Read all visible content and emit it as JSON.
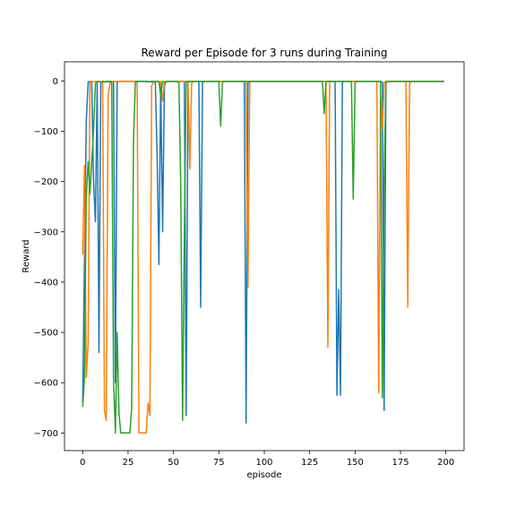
{
  "chart_data": {
    "type": "line",
    "title": "Reward per Episode for 3 runs during Training",
    "xlabel": "episode",
    "ylabel": "Reward",
    "xlim": [
      -10,
      210
    ],
    "ylim": [
      -735,
      38
    ],
    "xticks": [
      0,
      25,
      50,
      75,
      100,
      125,
      150,
      175,
      200
    ],
    "yticks": [
      0,
      -100,
      -200,
      -300,
      -400,
      -500,
      -600,
      -700
    ],
    "grid": false,
    "legend": "none",
    "series": [
      {
        "color": "#1f77b4",
        "points": [
          [
            0,
            -640
          ],
          [
            1,
            -350
          ],
          [
            2,
            -80
          ],
          [
            3,
            -2
          ],
          [
            4,
            -1
          ],
          [
            5,
            -3
          ],
          [
            6,
            -200
          ],
          [
            7,
            -280
          ],
          [
            8,
            -5
          ],
          [
            9,
            -540
          ],
          [
            10,
            -3
          ],
          [
            11,
            -1
          ],
          [
            12,
            -2
          ],
          [
            13,
            -2
          ],
          [
            14,
            -1
          ],
          [
            15,
            -1
          ],
          [
            16,
            -2
          ],
          [
            17,
            -1
          ],
          [
            18,
            -600
          ],
          [
            19,
            -3
          ],
          [
            20,
            -1
          ],
          [
            21,
            -1
          ],
          [
            22,
            -1
          ],
          [
            23,
            -1
          ],
          [
            24,
            -1
          ],
          [
            25,
            -1
          ],
          [
            30,
            -1
          ],
          [
            35,
            -1
          ],
          [
            36,
            -2
          ],
          [
            38,
            -1
          ],
          [
            39,
            -1
          ],
          [
            40,
            -3
          ],
          [
            41,
            -150
          ],
          [
            42,
            -365
          ],
          [
            43,
            -5
          ],
          [
            44,
            -300
          ],
          [
            45,
            -10
          ],
          [
            46,
            -1
          ],
          [
            47,
            -1
          ],
          [
            48,
            -1
          ],
          [
            50,
            -1
          ],
          [
            55,
            -1
          ],
          [
            56,
            -2
          ],
          [
            57,
            -665
          ],
          [
            58,
            -2
          ],
          [
            59,
            -1
          ],
          [
            60,
            -1
          ],
          [
            63,
            -1
          ],
          [
            64,
            -1
          ],
          [
            65,
            -450
          ],
          [
            66,
            -2
          ],
          [
            67,
            -1
          ],
          [
            70,
            -1
          ],
          [
            75,
            -1
          ],
          [
            80,
            -1
          ],
          [
            85,
            -1
          ],
          [
            88,
            -1
          ],
          [
            89,
            -1
          ],
          [
            90,
            -680
          ],
          [
            91,
            -3
          ],
          [
            92,
            -1
          ],
          [
            95,
            -1
          ],
          [
            100,
            -1
          ],
          [
            105,
            -1
          ],
          [
            110,
            -1
          ],
          [
            115,
            -1
          ],
          [
            120,
            -1
          ],
          [
            125,
            -1
          ],
          [
            130,
            -1
          ],
          [
            135,
            -1
          ],
          [
            138,
            -1
          ],
          [
            139,
            -2
          ],
          [
            140,
            -625
          ],
          [
            141,
            -415
          ],
          [
            142,
            -625
          ],
          [
            143,
            -3
          ],
          [
            144,
            -1
          ],
          [
            145,
            -1
          ],
          [
            150,
            -1
          ],
          [
            155,
            -1
          ],
          [
            160,
            -1
          ],
          [
            164,
            -1
          ],
          [
            165,
            -2
          ],
          [
            166,
            -655
          ],
          [
            167,
            -2
          ],
          [
            168,
            -1
          ],
          [
            170,
            -1
          ],
          [
            175,
            -1
          ],
          [
            180,
            -1
          ],
          [
            185,
            -1
          ],
          [
            190,
            -1
          ],
          [
            195,
            -1
          ],
          [
            199,
            -1
          ]
        ]
      },
      {
        "color": "#ff7f0e",
        "points": [
          [
            0,
            -345
          ],
          [
            1,
            -168
          ],
          [
            2,
            -590
          ],
          [
            3,
            -520
          ],
          [
            4,
            -3
          ],
          [
            5,
            -1
          ],
          [
            6,
            -2
          ],
          [
            7,
            -1
          ],
          [
            8,
            -1
          ],
          [
            9,
            -1
          ],
          [
            10,
            -2
          ],
          [
            11,
            -3
          ],
          [
            12,
            -655
          ],
          [
            13,
            -675
          ],
          [
            14,
            -30
          ],
          [
            15,
            -5
          ],
          [
            16,
            -2
          ],
          [
            17,
            -1
          ],
          [
            18,
            -1
          ],
          [
            20,
            -1
          ],
          [
            25,
            -1
          ],
          [
            29,
            -1
          ],
          [
            30,
            -3
          ],
          [
            31,
            -700
          ],
          [
            32,
            -700
          ],
          [
            33,
            -700
          ],
          [
            34,
            -700
          ],
          [
            35,
            -700
          ],
          [
            36,
            -640
          ],
          [
            37,
            -665
          ],
          [
            38,
            -10
          ],
          [
            39,
            -2
          ],
          [
            40,
            -1
          ],
          [
            41,
            -1
          ],
          [
            42,
            -2
          ],
          [
            43,
            -1
          ],
          [
            44,
            -40
          ],
          [
            45,
            -3
          ],
          [
            46,
            -1
          ],
          [
            47,
            -1
          ],
          [
            48,
            -1
          ],
          [
            50,
            -1
          ],
          [
            55,
            -1
          ],
          [
            58,
            -1
          ],
          [
            59,
            -175
          ],
          [
            60,
            -5
          ],
          [
            61,
            -1
          ],
          [
            62,
            -1
          ],
          [
            63,
            -1
          ],
          [
            65,
            -1
          ],
          [
            70,
            -1
          ],
          [
            75,
            -1
          ],
          [
            80,
            -1
          ],
          [
            85,
            -1
          ],
          [
            90,
            -1
          ],
          [
            91,
            -410
          ],
          [
            92,
            -2
          ],
          [
            93,
            -1
          ],
          [
            95,
            -1
          ],
          [
            100,
            -1
          ],
          [
            110,
            -1
          ],
          [
            120,
            -1
          ],
          [
            130,
            -1
          ],
          [
            134,
            -1
          ],
          [
            135,
            -530
          ],
          [
            136,
            -3
          ],
          [
            137,
            -1
          ],
          [
            140,
            -1
          ],
          [
            150,
            -1
          ],
          [
            160,
            -1
          ],
          [
            162,
            -1
          ],
          [
            163,
            -620
          ],
          [
            164,
            -30
          ],
          [
            165,
            -95
          ],
          [
            166,
            -3
          ],
          [
            167,
            -1
          ],
          [
            170,
            -1
          ],
          [
            178,
            -1
          ],
          [
            179,
            -450
          ],
          [
            180,
            -5
          ],
          [
            181,
            -1
          ],
          [
            185,
            -1
          ],
          [
            190,
            -1
          ],
          [
            195,
            -1
          ],
          [
            199,
            -1
          ]
        ]
      },
      {
        "color": "#2ca02c",
        "points": [
          [
            0,
            -648
          ],
          [
            1,
            -590
          ],
          [
            2,
            -230
          ],
          [
            3,
            -160
          ],
          [
            4,
            -225
          ],
          [
            5,
            -160
          ],
          [
            6,
            -100
          ],
          [
            7,
            -5
          ],
          [
            8,
            -2
          ],
          [
            9,
            -1
          ],
          [
            10,
            -2
          ],
          [
            11,
            -1
          ],
          [
            12,
            -2
          ],
          [
            13,
            -1
          ],
          [
            14,
            -1
          ],
          [
            15,
            -2
          ],
          [
            16,
            -1
          ],
          [
            17,
            -590
          ],
          [
            18,
            -700
          ],
          [
            19,
            -500
          ],
          [
            20,
            -660
          ],
          [
            21,
            -700
          ],
          [
            22,
            -700
          ],
          [
            23,
            -700
          ],
          [
            24,
            -700
          ],
          [
            25,
            -700
          ],
          [
            26,
            -700
          ],
          [
            27,
            -650
          ],
          [
            28,
            -120
          ],
          [
            29,
            -3
          ],
          [
            30,
            -1
          ],
          [
            31,
            -1
          ],
          [
            32,
            -1
          ],
          [
            35,
            -1
          ],
          [
            38,
            -2
          ],
          [
            39,
            -1
          ],
          [
            40,
            -1
          ],
          [
            42,
            -1
          ],
          [
            43,
            -30
          ],
          [
            44,
            -1
          ],
          [
            45,
            -2
          ],
          [
            46,
            -1
          ],
          [
            50,
            -1
          ],
          [
            53,
            -2
          ],
          [
            54,
            -200
          ],
          [
            55,
            -675
          ],
          [
            56,
            -300
          ],
          [
            57,
            -2
          ],
          [
            58,
            -1
          ],
          [
            60,
            -1
          ],
          [
            65,
            -1
          ],
          [
            70,
            -1
          ],
          [
            75,
            -1
          ],
          [
            76,
            -90
          ],
          [
            77,
            -2
          ],
          [
            78,
            -1
          ],
          [
            80,
            -1
          ],
          [
            90,
            -1
          ],
          [
            100,
            -1
          ],
          [
            110,
            -1
          ],
          [
            120,
            -1
          ],
          [
            130,
            -1
          ],
          [
            132,
            -1
          ],
          [
            133,
            -65
          ],
          [
            134,
            -2
          ],
          [
            135,
            -1
          ],
          [
            140,
            -1
          ],
          [
            148,
            -1
          ],
          [
            149,
            -235
          ],
          [
            150,
            -3
          ],
          [
            151,
            -1
          ],
          [
            155,
            -1
          ],
          [
            160,
            -1
          ],
          [
            164,
            -1
          ],
          [
            165,
            -630
          ],
          [
            166,
            -200
          ],
          [
            167,
            -3
          ],
          [
            168,
            -1
          ],
          [
            170,
            -1
          ],
          [
            175,
            -1
          ],
          [
            180,
            -1
          ],
          [
            185,
            -1
          ],
          [
            190,
            -1
          ],
          [
            195,
            -1
          ],
          [
            199,
            -1
          ]
        ]
      }
    ]
  }
}
